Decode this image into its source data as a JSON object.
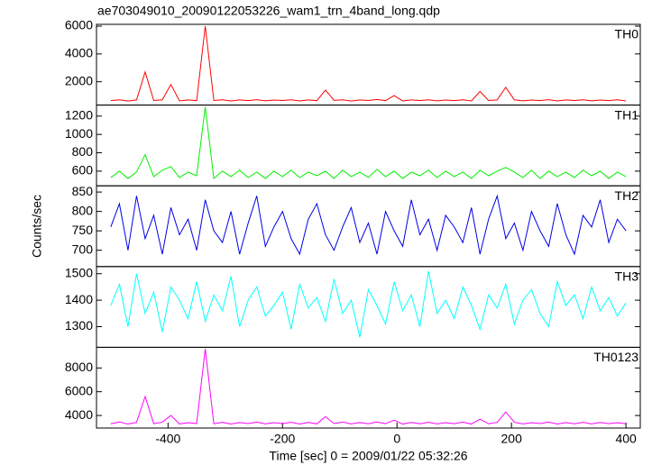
{
  "chart_data": [
    {
      "type": "line",
      "title": "ae703049010_20090122053226_wam1_trn_4band_long.qdp",
      "x": [
        -500,
        -485,
        -470,
        -455,
        -440,
        -425,
        -410,
        -395,
        -380,
        -365,
        -350,
        -335,
        -320,
        -305,
        -290,
        -275,
        -260,
        -245,
        -230,
        -215,
        -200,
        -185,
        -170,
        -155,
        -140,
        -125,
        -110,
        -95,
        -80,
        -65,
        -50,
        -35,
        -20,
        -5,
        10,
        25,
        40,
        55,
        70,
        85,
        100,
        115,
        130,
        145,
        160,
        175,
        190,
        205,
        220,
        235,
        250,
        265,
        280,
        295,
        310,
        325,
        340,
        355,
        370,
        385,
        400
      ],
      "xlim": [
        -525,
        425
      ],
      "ylim": [
        320,
        6130
      ],
      "yticks": [
        2000,
        4000,
        6000
      ],
      "series": [
        {
          "name": "TH0",
          "color": "#ff0000",
          "values": [
            640,
            700,
            610,
            690,
            2700,
            650,
            700,
            1800,
            620,
            690,
            640,
            6000,
            650,
            700,
            620,
            690,
            640,
            710,
            630,
            680,
            650,
            700,
            620,
            690,
            640,
            1400,
            660,
            700,
            610,
            690,
            650,
            720,
            640,
            1000,
            620,
            690,
            650,
            700,
            630,
            680,
            640,
            700,
            620,
            1300,
            650,
            690,
            1600,
            700,
            630,
            680,
            640,
            710,
            620,
            690,
            650,
            700,
            630,
            680,
            640,
            700,
            620
          ]
        }
      ]
    },
    {
      "type": "line",
      "x": [
        -500,
        -485,
        -470,
        -455,
        -440,
        -425,
        -410,
        -395,
        -380,
        -365,
        -350,
        -335,
        -320,
        -305,
        -290,
        -275,
        -260,
        -245,
        -230,
        -215,
        -200,
        -185,
        -170,
        -155,
        -140,
        -125,
        -110,
        -95,
        -80,
        -65,
        -50,
        -35,
        -20,
        -5,
        10,
        25,
        40,
        55,
        70,
        85,
        100,
        115,
        130,
        145,
        160,
        175,
        190,
        205,
        220,
        235,
        250,
        265,
        280,
        295,
        310,
        325,
        340,
        355,
        370,
        385,
        400
      ],
      "xlim": [
        -525,
        425
      ],
      "ylim": [
        440,
        1320
      ],
      "yticks": [
        600,
        800,
        1000,
        1200
      ],
      "series": [
        {
          "name": "TH1",
          "color": "#00ee00",
          "values": [
            530,
            600,
            520,
            590,
            780,
            540,
            610,
            650,
            530,
            590,
            550,
            1300,
            520,
            600,
            540,
            610,
            530,
            590,
            520,
            600,
            540,
            610,
            530,
            590,
            550,
            600,
            520,
            610,
            540,
            590,
            530,
            620,
            540,
            600,
            520,
            590,
            550,
            610,
            530,
            600,
            540,
            590,
            520,
            610,
            550,
            600,
            640,
            590,
            530,
            610,
            520,
            600,
            540,
            590,
            530,
            610,
            550,
            600,
            520,
            590,
            540
          ]
        }
      ]
    },
    {
      "type": "line",
      "ylabel": "Counts/sec",
      "x": [
        -500,
        -485,
        -470,
        -455,
        -440,
        -425,
        -410,
        -395,
        -380,
        -365,
        -350,
        -335,
        -320,
        -305,
        -290,
        -275,
        -260,
        -245,
        -230,
        -215,
        -200,
        -185,
        -170,
        -155,
        -140,
        -125,
        -110,
        -95,
        -80,
        -65,
        -50,
        -35,
        -20,
        -5,
        10,
        25,
        40,
        55,
        70,
        85,
        100,
        115,
        130,
        145,
        160,
        175,
        190,
        205,
        220,
        235,
        250,
        265,
        280,
        295,
        310,
        325,
        340,
        355,
        370,
        385,
        400
      ],
      "xlim": [
        -525,
        425
      ],
      "ylim": [
        658,
        866
      ],
      "yticks": [
        700,
        750,
        800,
        850
      ],
      "series": [
        {
          "name": "TH2",
          "color": "#0000e6",
          "values": [
            760,
            820,
            700,
            840,
            730,
            790,
            690,
            810,
            740,
            780,
            700,
            830,
            750,
            720,
            800,
            690,
            770,
            840,
            710,
            760,
            800,
            730,
            690,
            780,
            820,
            740,
            700,
            760,
            810,
            720,
            770,
            690,
            800,
            750,
            710,
            830,
            740,
            780,
            700,
            790,
            760,
            720,
            810,
            690,
            780,
            840,
            730,
            770,
            700,
            800,
            750,
            710,
            820,
            740,
            690,
            790,
            760,
            830,
            720,
            780,
            750
          ]
        }
      ]
    },
    {
      "type": "line",
      "x": [
        -500,
        -485,
        -470,
        -455,
        -440,
        -425,
        -410,
        -395,
        -380,
        -365,
        -350,
        -335,
        -320,
        -305,
        -290,
        -275,
        -260,
        -245,
        -230,
        -215,
        -200,
        -185,
        -170,
        -155,
        -140,
        -125,
        -110,
        -95,
        -80,
        -65,
        -50,
        -35,
        -20,
        -5,
        10,
        25,
        40,
        55,
        70,
        85,
        100,
        115,
        130,
        145,
        160,
        175,
        190,
        205,
        220,
        235,
        250,
        265,
        280,
        295,
        310,
        325,
        340,
        355,
        370,
        385,
        400
      ],
      "xlim": [
        -525,
        425
      ],
      "ylim": [
        1222,
        1527
      ],
      "yticks": [
        1300,
        1400,
        1500
      ],
      "series": [
        {
          "name": "TH3",
          "color": "#00ffff",
          "values": [
            1380,
            1460,
            1300,
            1500,
            1350,
            1430,
            1280,
            1450,
            1400,
            1330,
            1470,
            1320,
            1420,
            1360,
            1490,
            1300,
            1400,
            1450,
            1340,
            1380,
            1430,
            1290,
            1460,
            1370,
            1410,
            1320,
            1480,
            1350,
            1400,
            1260,
            1440,
            1380,
            1310,
            1470,
            1360,
            1420,
            1300,
            1510,
            1350,
            1400,
            1330,
            1450,
            1380,
            1290,
            1420,
            1370,
            1460,
            1310,
            1400,
            1440,
            1350,
            1300,
            1470,
            1380,
            1420,
            1330,
            1450,
            1360,
            1410,
            1340,
            1390
          ]
        }
      ]
    },
    {
      "type": "line",
      "xlabel": "Time [sec] 0 = 2009/01/22 05:32:26",
      "x": [
        -500,
        -485,
        -470,
        -455,
        -440,
        -425,
        -410,
        -395,
        -380,
        -365,
        -350,
        -335,
        -320,
        -305,
        -290,
        -275,
        -260,
        -245,
        -230,
        -215,
        -200,
        -185,
        -170,
        -155,
        -140,
        -125,
        -110,
        -95,
        -80,
        -65,
        -50,
        -35,
        -20,
        -5,
        10,
        25,
        40,
        55,
        70,
        85,
        100,
        115,
        130,
        145,
        160,
        175,
        190,
        205,
        220,
        235,
        250,
        265,
        280,
        295,
        310,
        325,
        340,
        355,
        370,
        385,
        400
      ],
      "xlim": [
        -525,
        425
      ],
      "xticks": [
        -400,
        -200,
        0,
        200,
        400
      ],
      "ylim": [
        2943,
        9736
      ],
      "yticks": [
        4000,
        6000,
        8000
      ],
      "series": [
        {
          "name": "TH0123",
          "color": "#ff00ff",
          "values": [
            3300,
            3450,
            3280,
            3420,
            5600,
            3310,
            3440,
            4000,
            3290,
            3400,
            3320,
            9600,
            3300,
            3430,
            3280,
            3410,
            3320,
            3440,
            3290,
            3400,
            3310,
            3430,
            3280,
            3420,
            3300,
            3900,
            3320,
            3440,
            3290,
            3410,
            3300,
            3450,
            3310,
            3600,
            3280,
            3420,
            3300,
            3430,
            3290,
            3400,
            3310,
            3440,
            3280,
            3700,
            3300,
            3420,
            4300,
            3430,
            3290,
            3400,
            3320,
            3440,
            3280,
            3410,
            3300,
            3430,
            3290,
            3420,
            3310,
            3400,
            3300
          ]
        }
      ]
    }
  ]
}
